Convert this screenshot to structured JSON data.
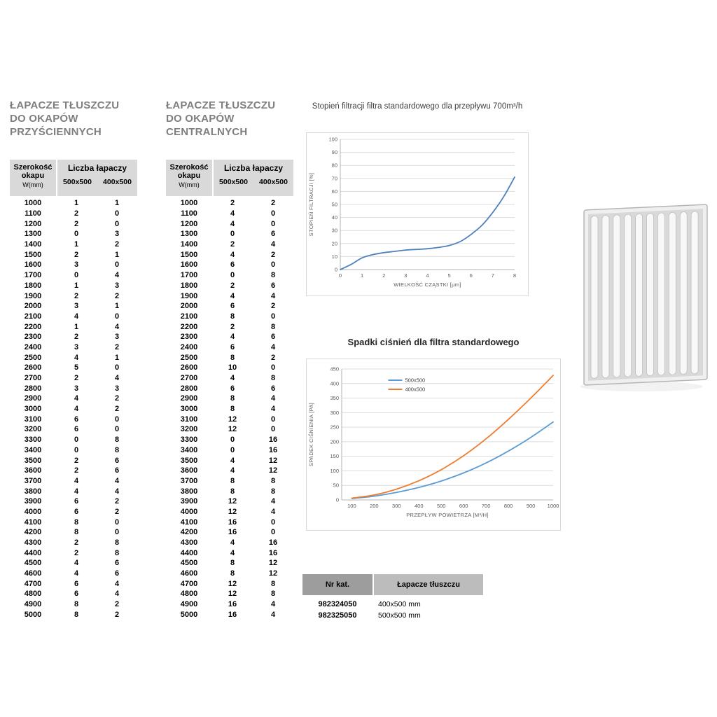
{
  "tables": {
    "wall": {
      "title_lines": [
        "ŁAPACZE TŁUSZCZU",
        "DO OKAPÓW",
        "PRZYŚCIENNYCH"
      ],
      "width_header_lines": [
        "Szerokość",
        "okapu"
      ],
      "width_header_unit": "W(mm)",
      "group_header": "Liczba łapaczy",
      "size_columns": [
        "500x500",
        "400x500"
      ],
      "rows": [
        [
          1000,
          1,
          1
        ],
        [
          1100,
          2,
          0
        ],
        [
          1200,
          2,
          0
        ],
        [
          1300,
          0,
          3
        ],
        [
          1400,
          1,
          2
        ],
        [
          1500,
          2,
          1
        ],
        [
          1600,
          3,
          0
        ],
        [
          1700,
          0,
          4
        ],
        [
          1800,
          1,
          3
        ],
        [
          1900,
          2,
          2
        ],
        [
          2000,
          3,
          1
        ],
        [
          2100,
          4,
          0
        ],
        [
          2200,
          1,
          4
        ],
        [
          2300,
          2,
          3
        ],
        [
          2400,
          3,
          2
        ],
        [
          2500,
          4,
          1
        ],
        [
          2600,
          5,
          0
        ],
        [
          2700,
          2,
          4
        ],
        [
          2800,
          3,
          3
        ],
        [
          2900,
          4,
          2
        ],
        [
          3000,
          4,
          2
        ],
        [
          3100,
          6,
          0
        ],
        [
          3200,
          6,
          0
        ],
        [
          3300,
          0,
          8
        ],
        [
          3400,
          0,
          8
        ],
        [
          3500,
          2,
          6
        ],
        [
          3600,
          2,
          6
        ],
        [
          3700,
          4,
          4
        ],
        [
          3800,
          4,
          4
        ],
        [
          3900,
          6,
          2
        ],
        [
          4000,
          6,
          2
        ],
        [
          4100,
          8,
          0
        ],
        [
          4200,
          8,
          0
        ],
        [
          4300,
          2,
          8
        ],
        [
          4400,
          2,
          8
        ],
        [
          4500,
          4,
          6
        ],
        [
          4600,
          4,
          6
        ],
        [
          4700,
          6,
          4
        ],
        [
          4800,
          6,
          4
        ],
        [
          4900,
          8,
          2
        ],
        [
          5000,
          8,
          2
        ]
      ]
    },
    "central": {
      "title_lines": [
        "ŁAPACZE TŁUSZCZU",
        "DO OKAPÓW",
        "CENTRALNYCH"
      ],
      "width_header_lines": [
        "Szerokość",
        "okapu"
      ],
      "width_header_unit": "W(mm)",
      "group_header": "Liczba łapaczy",
      "size_columns": [
        "500x500",
        "400x500"
      ],
      "rows": [
        [
          1000,
          2,
          2
        ],
        [
          1100,
          4,
          0
        ],
        [
          1200,
          4,
          0
        ],
        [
          1300,
          0,
          6
        ],
        [
          1400,
          2,
          4
        ],
        [
          1500,
          4,
          2
        ],
        [
          1600,
          6,
          0
        ],
        [
          1700,
          0,
          8
        ],
        [
          1800,
          2,
          6
        ],
        [
          1900,
          4,
          4
        ],
        [
          2000,
          6,
          2
        ],
        [
          2100,
          8,
          0
        ],
        [
          2200,
          2,
          8
        ],
        [
          2300,
          4,
          6
        ],
        [
          2400,
          6,
          4
        ],
        [
          2500,
          8,
          2
        ],
        [
          2600,
          10,
          0
        ],
        [
          2700,
          4,
          8
        ],
        [
          2800,
          6,
          6
        ],
        [
          2900,
          8,
          4
        ],
        [
          3000,
          8,
          4
        ],
        [
          3100,
          12,
          0
        ],
        [
          3200,
          12,
          0
        ],
        [
          3300,
          0,
          16
        ],
        [
          3400,
          0,
          16
        ],
        [
          3500,
          4,
          12
        ],
        [
          3600,
          4,
          12
        ],
        [
          3700,
          8,
          8
        ],
        [
          3800,
          8,
          8
        ],
        [
          3900,
          12,
          4
        ],
        [
          4000,
          12,
          4
        ],
        [
          4100,
          16,
          0
        ],
        [
          4200,
          16,
          0
        ],
        [
          4300,
          4,
          16
        ],
        [
          4400,
          4,
          16
        ],
        [
          4500,
          8,
          12
        ],
        [
          4600,
          8,
          12
        ],
        [
          4700,
          12,
          8
        ],
        [
          4800,
          12,
          8
        ],
        [
          4900,
          16,
          4
        ],
        [
          5000,
          16,
          4
        ]
      ]
    }
  },
  "chart_data": [
    {
      "type": "line",
      "title": "Stopień filtracji filtra standardowego dla przepływu 700m³/h",
      "xlabel": "WIELKOŚĆ CZĄSTKI [μm]",
      "ylabel": "STOPIEŃ FILTRACJI [%]",
      "xlim": [
        0,
        8
      ],
      "ylim": [
        0,
        100
      ],
      "xticks": [
        0,
        1,
        2,
        3,
        4,
        5,
        6,
        7,
        8
      ],
      "yticks": [
        0,
        10,
        20,
        30,
        40,
        50,
        60,
        70,
        80,
        90,
        100
      ],
      "grid": "horizontal",
      "legend_position": "none",
      "series": [
        {
          "name": "",
          "color": "#4f81bd",
          "points": [
            [
              0,
              0
            ],
            [
              0.5,
              4
            ],
            [
              1,
              9
            ],
            [
              1.5,
              11.5
            ],
            [
              2,
              13
            ],
            [
              2.5,
              14
            ],
            [
              3,
              15
            ],
            [
              3.5,
              15.5
            ],
            [
              4,
              16
            ],
            [
              4.5,
              17
            ],
            [
              5,
              18.5
            ],
            [
              5.5,
              21.5
            ],
            [
              6,
              27
            ],
            [
              6.5,
              34
            ],
            [
              7,
              44
            ],
            [
              7.5,
              56
            ],
            [
              8,
              71
            ]
          ]
        }
      ]
    },
    {
      "type": "line",
      "title": "Spadki ciśnień dla filtra standardowego",
      "xlabel": "PRZEPŁYW POWIETRZA [M³/H]",
      "ylabel": "SPADEK CIŚNIENIA [PA]",
      "xlim": [
        100,
        1000
      ],
      "xaxis_min": 55,
      "ylim": [
        0,
        450
      ],
      "xticks": [
        100,
        200,
        300,
        400,
        500,
        600,
        700,
        800,
        900,
        1000
      ],
      "yticks": [
        0,
        50,
        100,
        150,
        200,
        250,
        300,
        350,
        400,
        450
      ],
      "grid": "horizontal",
      "legend_position": "top",
      "series": [
        {
          "name": "500x500",
          "color": "#5b9bd5",
          "points": [
            [
              100,
              5
            ],
            [
              200,
              13
            ],
            [
              300,
              26
            ],
            [
              400,
              43
            ],
            [
              500,
              65
            ],
            [
              600,
              93
            ],
            [
              700,
              127
            ],
            [
              800,
              168
            ],
            [
              900,
              215
            ],
            [
              1000,
              268
            ]
          ]
        },
        {
          "name": "400x500",
          "color": "#ed7d31",
          "points": [
            [
              100,
              6
            ],
            [
              200,
              17
            ],
            [
              300,
              37
            ],
            [
              400,
              66
            ],
            [
              500,
              104
            ],
            [
              600,
              152
            ],
            [
              700,
              210
            ],
            [
              800,
              277
            ],
            [
              900,
              350
            ],
            [
              1000,
              428
            ]
          ]
        }
      ]
    }
  ],
  "catalog": {
    "headers": [
      "Nr kat.",
      "Łapacze tłuszczu"
    ],
    "rows": [
      [
        "982324050",
        "400x500 mm"
      ],
      [
        "982325050",
        "500x500 mm"
      ]
    ]
  }
}
